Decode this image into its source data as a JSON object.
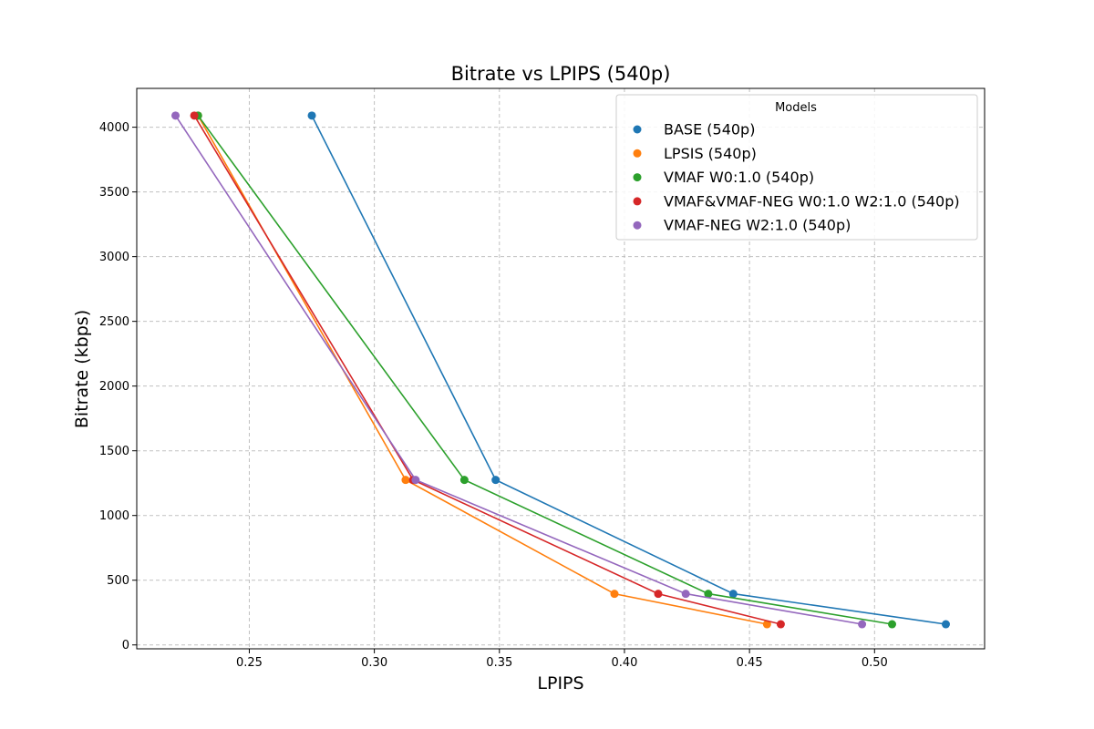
{
  "chart_data": {
    "type": "line",
    "title": "Bitrate vs LPIPS (540p)",
    "xlabel": "LPIPS",
    "ylabel": "Bitrate (kbps)",
    "xlim": [
      0.205,
      0.544
    ],
    "ylim": [
      -30,
      4300
    ],
    "xticks": [
      0.25,
      0.3,
      0.35,
      0.4,
      0.45,
      0.5
    ],
    "xtick_labels": [
      "0.25",
      "0.30",
      "0.35",
      "0.40",
      "0.45",
      "0.50"
    ],
    "yticks": [
      0,
      500,
      1000,
      1500,
      2000,
      2500,
      3000,
      3500,
      4000
    ],
    "ytick_labels": [
      "0",
      "500",
      "1000",
      "1500",
      "2000",
      "2500",
      "3000",
      "3500",
      "4000"
    ],
    "grid": true,
    "legend": {
      "title": "Models",
      "placement": "top-right"
    },
    "series": [
      {
        "name": "BASE (540p)",
        "color": "#1f77b4",
        "x": [
          0.275,
          0.3485,
          0.4435,
          0.5285
        ],
        "y": [
          4090,
          1275,
          395,
          160
        ]
      },
      {
        "name": "LPSIS (540p)",
        "color": "#ff7f0e",
        "x": [
          0.2295,
          0.3125,
          0.396,
          0.457
        ],
        "y": [
          4090,
          1275,
          395,
          160
        ]
      },
      {
        "name": "VMAF W0:1.0 (540p)",
        "color": "#2ca02c",
        "x": [
          0.2295,
          0.336,
          0.4335,
          0.507
        ],
        "y": [
          4090,
          1275,
          395,
          160
        ]
      },
      {
        "name": "VMAF&VMAF-NEG W0:1.0 W2:1.0 (540p)",
        "color": "#d62728",
        "x": [
          0.228,
          0.3155,
          0.4135,
          0.4625
        ],
        "y": [
          4090,
          1275,
          395,
          160
        ]
      },
      {
        "name": "VMAF-NEG W2:1.0 (540p)",
        "color": "#9467bd",
        "x": [
          0.2205,
          0.3165,
          0.4245,
          0.495
        ],
        "y": [
          4090,
          1275,
          395,
          160
        ]
      }
    ]
  }
}
